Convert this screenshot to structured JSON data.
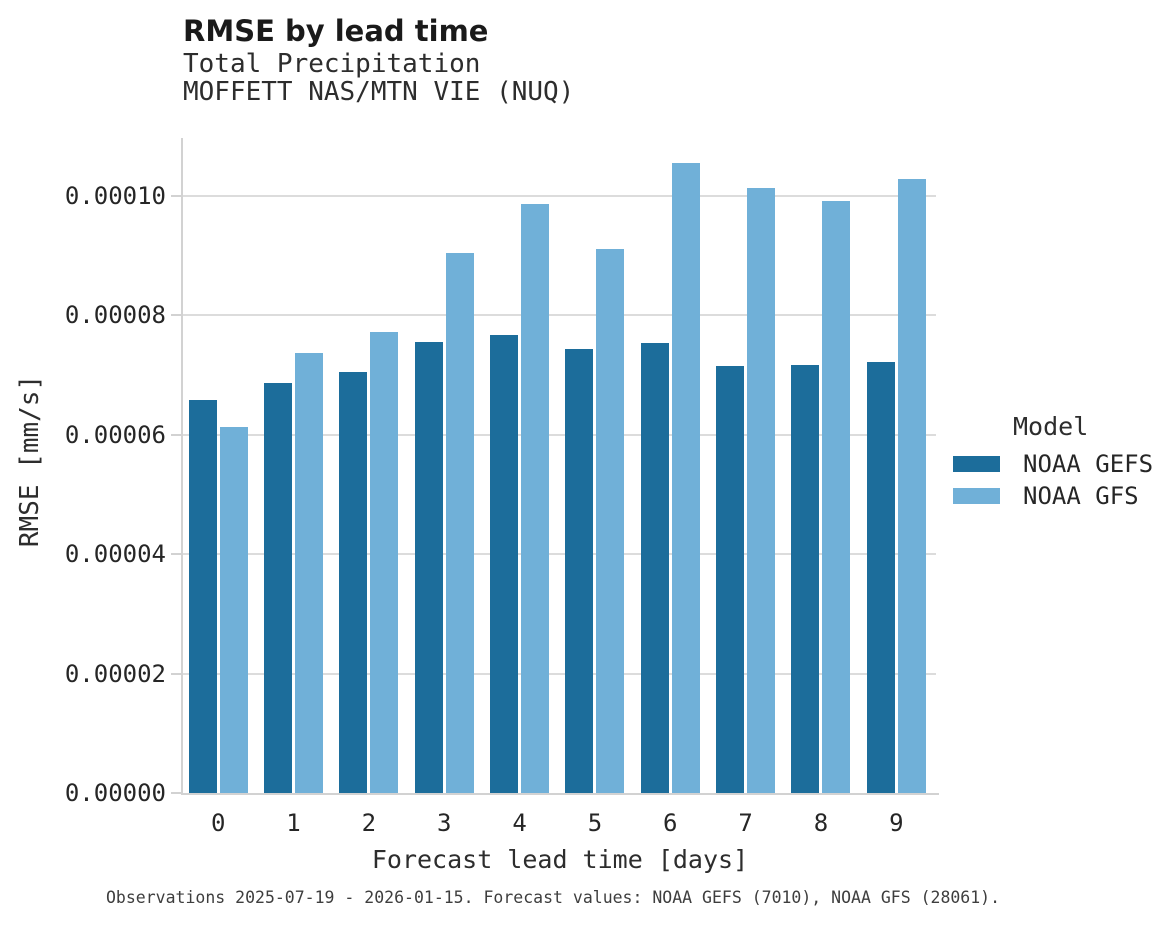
{
  "chart_data": {
    "type": "bar",
    "title": "RMSE by lead time",
    "subtitle1": "Total Precipitation",
    "subtitle2": "MOFFETT NAS/MTN VIE (NUQ)",
    "xlabel": "Forecast lead time [days]",
    "ylabel": "RMSE [mm/s]",
    "legend_title": "Model",
    "legend_position": "right",
    "grid": "horizontal",
    "categories": [
      "0",
      "1",
      "2",
      "3",
      "4",
      "5",
      "6",
      "7",
      "8",
      "9"
    ],
    "series": [
      {
        "name": "NOAA GEFS",
        "color": "#1c6d9b",
        "values": [
          6.58e-05,
          6.86e-05,
          7.05e-05,
          7.54e-05,
          7.67e-05,
          7.43e-05,
          7.53e-05,
          7.14e-05,
          7.17e-05,
          7.21e-05
        ]
      },
      {
        "name": "NOAA GFS",
        "color": "#70b0d8",
        "values": [
          6.13e-05,
          7.37e-05,
          7.72e-05,
          9.03e-05,
          9.86e-05,
          9.11e-05,
          0.0001055,
          0.0001013,
          9.9e-05,
          0.0001027
        ]
      }
    ],
    "ylim": [
      0,
      0.000109
    ],
    "ytick_values": [
      0,
      2e-05,
      4e-05,
      6e-05,
      8e-05,
      0.0001
    ],
    "ytick_labels": [
      "0.00000",
      "0.00002",
      "0.00004",
      "0.00006",
      "0.00008",
      "0.00010"
    ],
    "footnote": "Observations 2025-07-19 - 2026-01-15. Forecast values: NOAA GEFS (7010), NOAA GFS (28061)."
  },
  "colors": {
    "gefs_bar": "#1c6d9b",
    "gfs_bar": "#70b0d8",
    "gridline": "#dcdcdc",
    "axis": "#d2d2d2",
    "text_dark": "#1a1a1a",
    "text_gray": "#2d2d2d"
  }
}
